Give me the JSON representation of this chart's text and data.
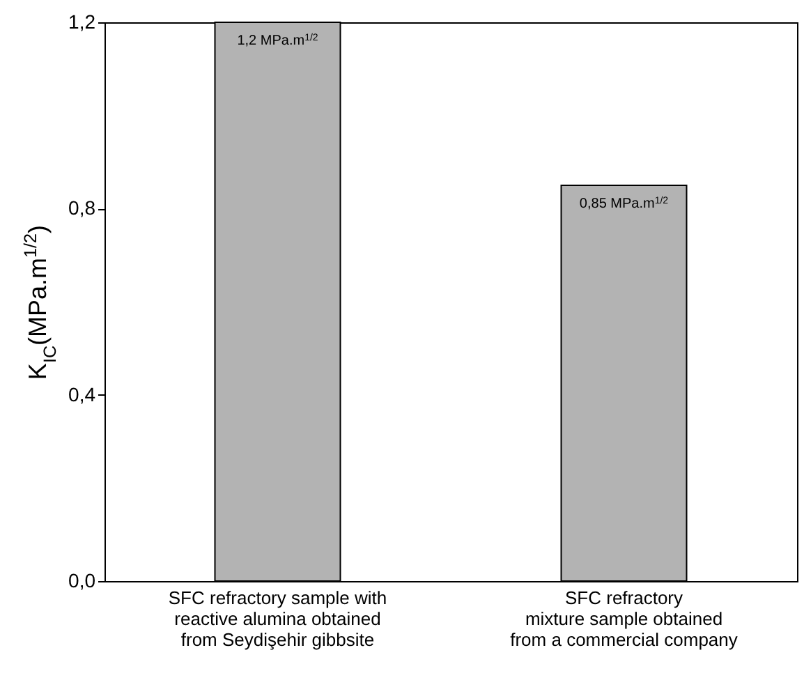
{
  "chart_data": {
    "type": "bar",
    "ylabel": "K$_{IC}$(MPa.m$^{1/2}$)",
    "categories": [
      "SFC refractory sample with\nreactive alumina obtained\nfrom Seydişehir gibbsite",
      "SFC refractory\nmixture sample obtained\nfrom a commercial company"
    ],
    "values": [
      1.2,
      0.85
    ],
    "value_labels": [
      "1,2 MPa.m$^{1/2}$",
      "0,85 MPa.m$^{1/2}$"
    ],
    "color": "#b3b3b3",
    "ylim": [
      0,
      1.2
    ],
    "yticks": [
      {
        "value": 0,
        "label": "0,0"
      },
      {
        "value": 0.4,
        "label": "0,4"
      },
      {
        "value": 0.8,
        "label": "0,8"
      },
      {
        "value": 1.2,
        "label": "1,2"
      }
    ],
    "grid": false
  }
}
